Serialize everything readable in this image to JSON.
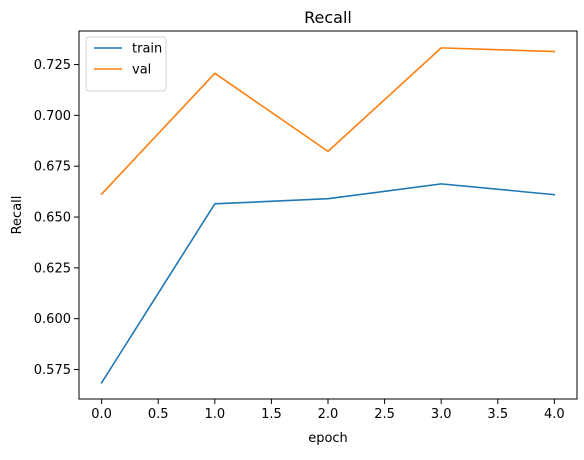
{
  "chart_data": {
    "type": "line",
    "title": "Recall",
    "xlabel": "epoch",
    "ylabel": "Recall",
    "x": [
      0,
      1,
      2,
      3,
      4
    ],
    "xlim": [
      -0.2,
      4.2
    ],
    "ylim": [
      0.5605,
      0.7415
    ],
    "x_ticks": [
      0.0,
      0.5,
      1.0,
      1.5,
      2.0,
      2.5,
      3.0,
      3.5,
      4.0
    ],
    "x_tick_labels": [
      "0.0",
      "0.5",
      "1.0",
      "1.5",
      "2.0",
      "2.5",
      "3.0",
      "3.5",
      "4.0"
    ],
    "y_ticks": [
      0.575,
      0.6,
      0.625,
      0.65,
      0.675,
      0.7,
      0.725
    ],
    "y_tick_labels": [
      "0.575",
      "0.600",
      "0.625",
      "0.650",
      "0.675",
      "0.700",
      "0.725"
    ],
    "grid": false,
    "legend_position": "top-left",
    "series": [
      {
        "name": "train",
        "color": "#1f77b4",
        "values": [
          0.5685,
          0.6565,
          0.659,
          0.6663,
          0.661
        ]
      },
      {
        "name": "val",
        "color": "#ff7f0e",
        "values": [
          0.6613,
          0.7207,
          0.6823,
          0.7332,
          0.7314
        ]
      }
    ]
  }
}
